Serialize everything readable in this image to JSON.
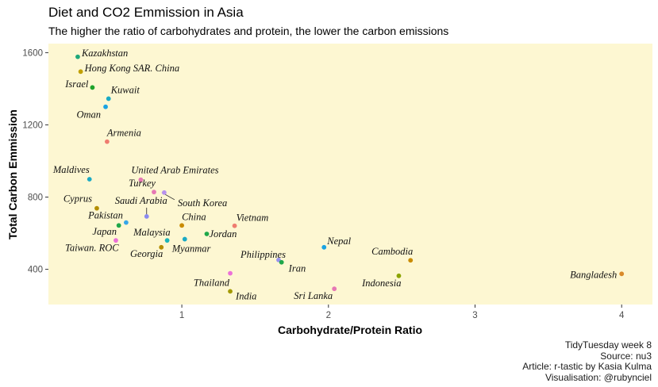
{
  "chart_data": {
    "type": "scatter",
    "title": "Diet and CO2 Emmission in Asia",
    "subtitle": "The higher the ratio of carbohydrates and protein, the lower the carbon emissions",
    "xlabel": "Carbohydrate/Protein Ratio",
    "ylabel": "Total Carbon Emmission",
    "xlim": [
      0.09,
      4.21
    ],
    "ylim": [
      205,
      1650
    ],
    "x_ticks": [
      1,
      2,
      3,
      4
    ],
    "y_ticks": [
      400,
      800,
      1200,
      1600
    ],
    "grid": false,
    "legend": "none",
    "background": "#fdf7d2",
    "points": [
      {
        "name": "Kazakhstan",
        "x": 0.29,
        "y": 1577,
        "color": "#1fa87a"
      },
      {
        "name": "Hong Kong SAR. China",
        "x": 0.31,
        "y": 1495,
        "color": "#c1a000"
      },
      {
        "name": "Israel",
        "x": 0.39,
        "y": 1407,
        "color": "#1fa32b"
      },
      {
        "name": "Kuwait",
        "x": 0.5,
        "y": 1345,
        "color": "#1aaac4"
      },
      {
        "name": "Oman",
        "x": 0.48,
        "y": 1300,
        "color": "#1aa3e3"
      },
      {
        "name": "Armenia",
        "x": 0.49,
        "y": 1107,
        "color": "#ef7c70"
      },
      {
        "name": "Maldives",
        "x": 0.37,
        "y": 899,
        "color": "#1aaac4"
      },
      {
        "name": "United Arab Emirates",
        "x": 0.72,
        "y": 896,
        "color": "#e678b4"
      },
      {
        "name": "Turkey",
        "x": 0.81,
        "y": 828,
        "color": "#e678b4"
      },
      {
        "name": "South Korea",
        "x": 0.88,
        "y": 825,
        "color": "#b892ee"
      },
      {
        "name": "Cyprus",
        "x": 0.42,
        "y": 738,
        "color": "#b38e00"
      },
      {
        "name": "Saudi Arabia",
        "x": 0.76,
        "y": 693,
        "color": "#8a8af0"
      },
      {
        "name": "Pakistan",
        "x": 0.62,
        "y": 659,
        "color": "#37a6e8"
      },
      {
        "name": "China",
        "x": 1.0,
        "y": 643,
        "color": "#c98b00"
      },
      {
        "name": "Vietnam",
        "x": 1.36,
        "y": 641,
        "color": "#ef7c70"
      },
      {
        "name": "Japan",
        "x": 0.55,
        "y": 560,
        "color": "#ec70d8"
      },
      {
        "name": "Malaysia",
        "x": 0.9,
        "y": 560,
        "color": "#1ab5ba"
      },
      {
        "name": "Jordan",
        "x": 1.17,
        "y": 596,
        "color": "#1fa84a"
      },
      {
        "name": "Myanmar",
        "x": 1.02,
        "y": 567,
        "color": "#1aaac4"
      },
      {
        "name": "Georgia",
        "x": 0.86,
        "y": 522,
        "color": "#b38e00"
      },
      {
        "name": "Taiwan. ROC",
        "x": 0.57,
        "y": 643,
        "color": "#1fa84a"
      },
      {
        "name": "Nepal",
        "x": 1.97,
        "y": 522,
        "color": "#1aa3e3"
      },
      {
        "name": "Philippines",
        "x": 1.66,
        "y": 452,
        "color": "#9892ee"
      },
      {
        "name": "Iran",
        "x": 1.68,
        "y": 439,
        "color": "#1fa84a"
      },
      {
        "name": "Cambodia",
        "x": 2.56,
        "y": 450,
        "color": "#c98b00"
      },
      {
        "name": "Indonesia",
        "x": 2.48,
        "y": 364,
        "color": "#8ca400"
      },
      {
        "name": "Bangladesh",
        "x": 4.0,
        "y": 375,
        "color": "#d98a2a"
      },
      {
        "name": "Thailand",
        "x": 1.33,
        "y": 378,
        "color": "#ec70d8"
      },
      {
        "name": "India",
        "x": 1.33,
        "y": 278,
        "color": "#a39a00"
      },
      {
        "name": "Sri Lanka",
        "x": 2.04,
        "y": 292,
        "color": "#e678b4"
      }
    ]
  },
  "caption": [
    "TidyTuesday week 8",
    "Source: nu3",
    "Article: r-tastic by Kasia Kulma",
    "Visualisation: @rubynciel"
  ]
}
